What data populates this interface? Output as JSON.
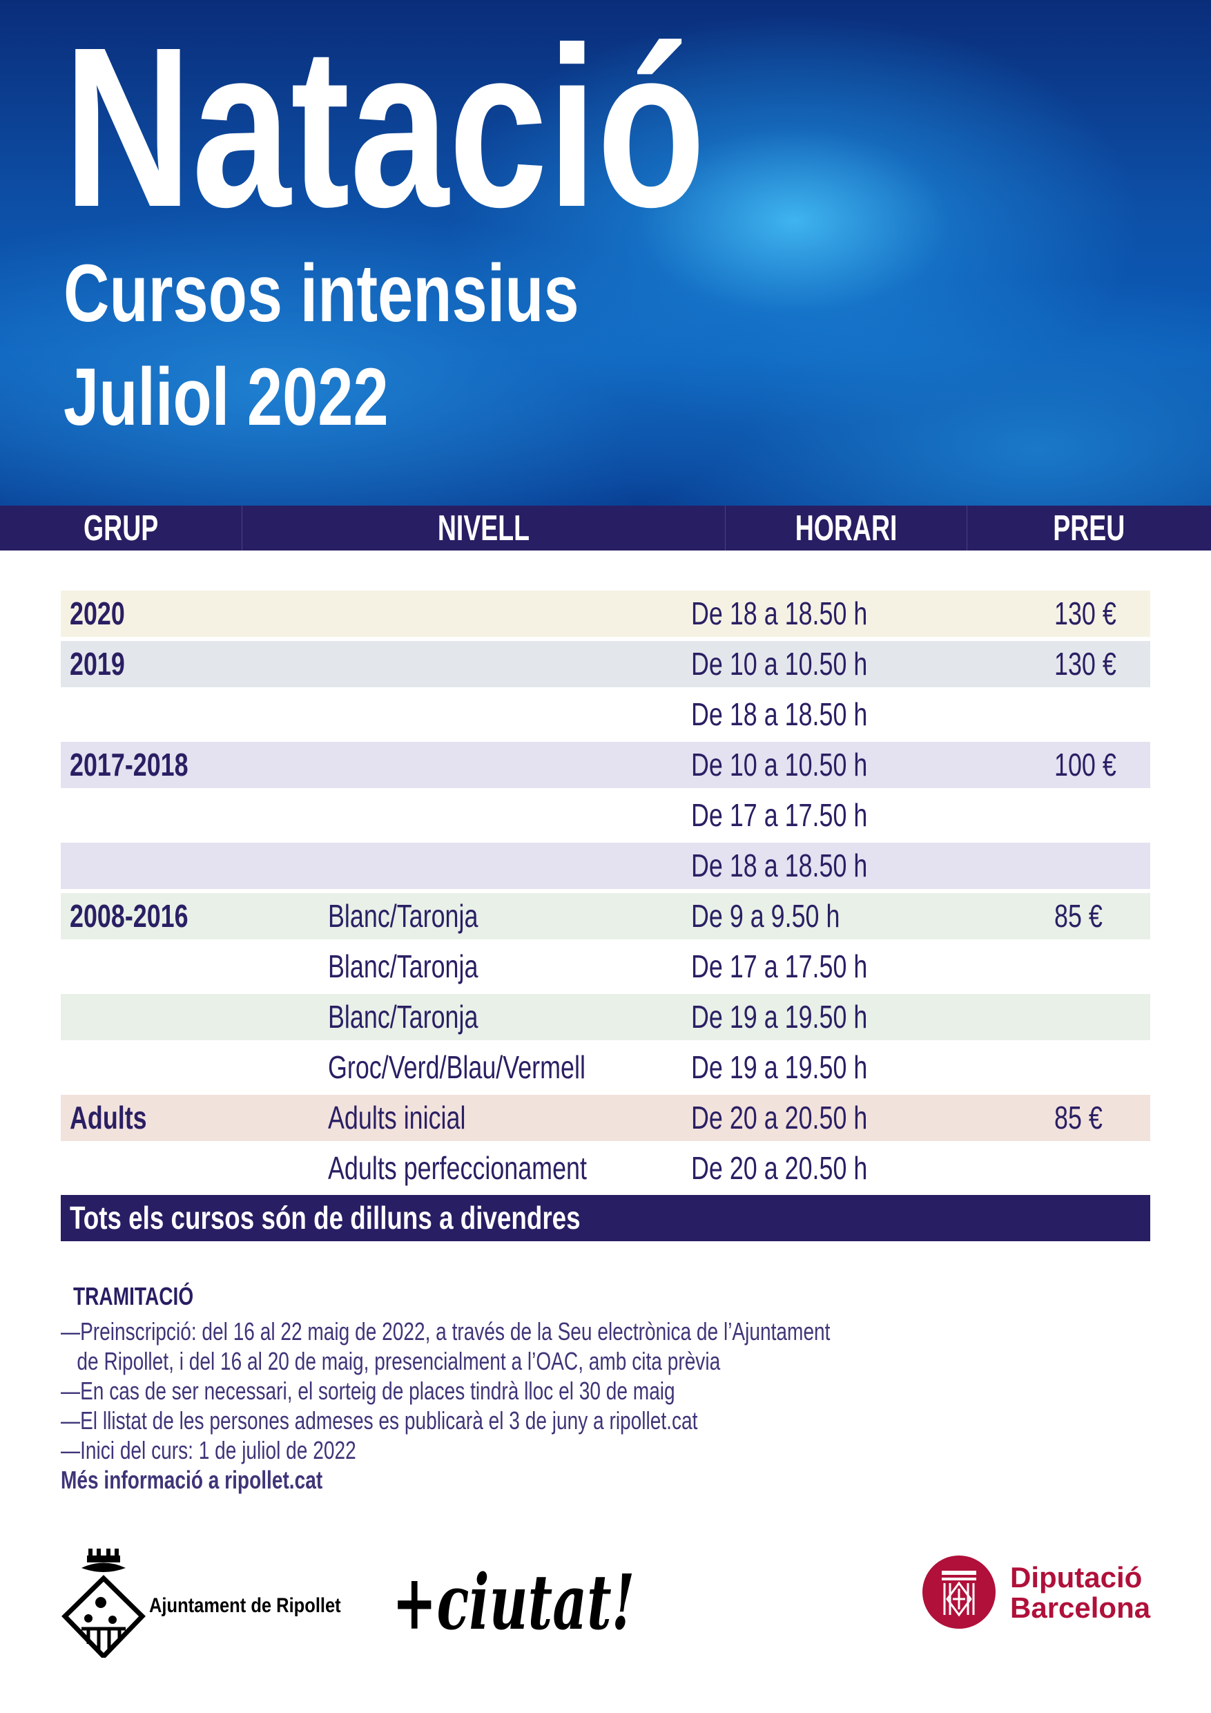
{
  "header": {
    "title": "Natació",
    "subtitle": "Cursos intensius",
    "date": "Juliol 2022"
  },
  "table": {
    "columns": [
      "GRUP",
      "NIVELL",
      "HORARI",
      "PREU"
    ],
    "rows": [
      {
        "grup": "2020",
        "nivell": "",
        "horari": "De 18 a 18.50 h",
        "preu": "130 €",
        "bg": "#f5f2e4"
      },
      {
        "grup": "2019",
        "nivell": "",
        "horari": "De 10 a 10.50 h",
        "preu": "130 €",
        "bg": "#e3e7ec"
      },
      {
        "grup": "",
        "nivell": "",
        "horari": "De 18 a 18.50 h",
        "preu": "",
        "bg": "#ffffff"
      },
      {
        "grup": "2017-2018",
        "nivell": "",
        "horari": "De 10 a 10.50 h",
        "preu": "100 €",
        "bg": "#e4e1f0"
      },
      {
        "grup": "",
        "nivell": "",
        "horari": "De 17 a 17.50 h",
        "preu": "",
        "bg": "#ffffff"
      },
      {
        "grup": "",
        "nivell": "",
        "horari": "De 18 a 18.50 h",
        "preu": "",
        "bg": "#e4e1f0"
      },
      {
        "grup": "2008-2016",
        "nivell": "Blanc/Taronja",
        "horari": "De 9 a 9.50 h",
        "preu": "85 €",
        "bg": "#e8f0e8"
      },
      {
        "grup": "",
        "nivell": "Blanc/Taronja",
        "horari": "De 17 a 17.50 h",
        "preu": "",
        "bg": "#ffffff"
      },
      {
        "grup": "",
        "nivell": "Blanc/Taronja",
        "horari": "De 19 a 19.50 h",
        "preu": "",
        "bg": "#e8f0e8"
      },
      {
        "grup": "",
        "nivell": "Groc/Verd/Blau/Vermell",
        "horari": "De 19 a 19.50 h",
        "preu": "",
        "bg": "#ffffff"
      },
      {
        "grup": "Adults",
        "nivell": "Adults inicial",
        "horari": "De 20 a 20.50 h",
        "preu": "85 €",
        "bg": "#f2e2dc"
      },
      {
        "grup": "",
        "nivell": "Adults perfeccionament",
        "horari": "De 20 a 20.50 h",
        "preu": "",
        "bg": "#ffffff"
      }
    ],
    "footer": "Tots els cursos són de dilluns a divendres"
  },
  "tramitacio": {
    "title": "TRAMITACIÓ",
    "items": [
      "—Preinscripció: del 16 al 22 maig de 2022, a través de la Seu electrònica de l’Ajuntament",
      "   de Ripollet, i del 16 al 20 de maig, presencialment a l’OAC, amb cita prèvia",
      "—En cas de ser necessari, el sorteig de places tindrà lloc el 30 de maig",
      "—El llistat de les persones admeses es publicarà el 3 de juny a ripollet.cat",
      "—Inici del curs: 1 de juliol de 2022"
    ],
    "more": "Més informació a ripollet.cat"
  },
  "logos": {
    "ripollet": "Ajuntament de Ripollet",
    "slogan": "+ciutat!",
    "diputacio_line1": "Diputació",
    "diputacio_line2": "Barcelona",
    "diputacio_color": "#b0103a"
  },
  "colors": {
    "navy": "#281e63",
    "text": "#2a1f63"
  }
}
